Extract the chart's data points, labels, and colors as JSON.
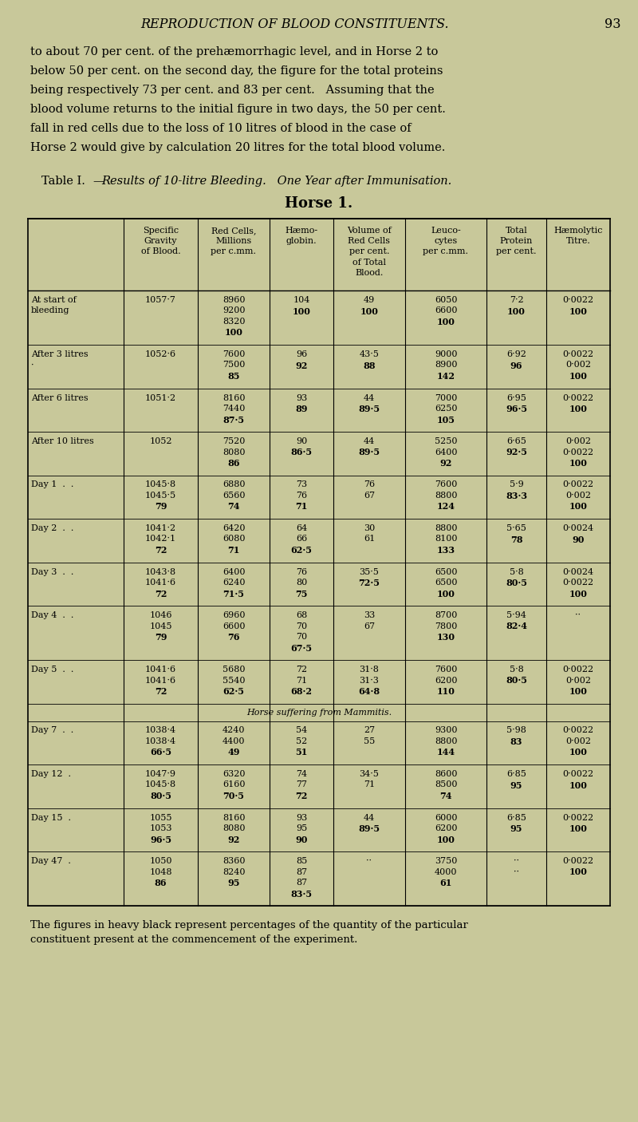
{
  "bg_color": "#c8c89a",
  "page_title": "REPRODUCTION OF BLOOD CONSTITUENTS.",
  "page_number": "93",
  "intro_text": [
    "to about 70 per cent. of the prehæmorrhagic level, and in Horse 2 to",
    "below 50 per cent. on the second day, the figure for the total proteins",
    "being respectively 73 per cent. and 83 per cent.   Assuming that the",
    "blood volume returns to the initial figure in two days, the 50 per cent.",
    "fall in red cells due to the loss of 10 litres of blood in the case of",
    "Horse 2 would give by calculation 20 litres for the total blood volume."
  ],
  "table_title_fixed": "Table I.",
  "table_title_italic": "—Results of 10-litre Bleeding.   One Year after Immunisation.",
  "table_subtitle": "Horse 1.",
  "col_headers": [
    "",
    "Specific\nGravity\nof Blood.",
    "Red Cells,\nMillions\nper c.mm.",
    "Hæmo-\nglobin.",
    "Volume of\nRed Cells\nper cent.\nof Total\nBlood.",
    "Leuco-\ncytes\nper c.mm.",
    "Total\nProtein\nper cent.",
    "Hæmolytic\nTitre."
  ],
  "footer_text": "The figures in heavy black represent percentages of the quantity of the particular\nconstituent present at the commencement of the experiment.",
  "rows": [
    {
      "label": [
        "At start of",
        "bleeding"
      ],
      "col1": [
        "1057·7"
      ],
      "col2": [
        "8960",
        "9200",
        "8320",
        "100"
      ],
      "col3": [
        "104",
        "100"
      ],
      "col4": [
        "49",
        "100"
      ],
      "col5": [
        "6050",
        "6600",
        "100"
      ],
      "col6": [
        "7·2",
        "100"
      ],
      "col7": [
        "0·0022",
        "100"
      ],
      "bold_lines": {
        "col2": [
          3
        ],
        "col3": [
          1
        ],
        "col4": [
          1
        ],
        "col5": [
          2
        ],
        "col6": [
          1
        ],
        "col7": [
          1
        ]
      }
    },
    {
      "label": [
        "After 3 litres",
        "·"
      ],
      "col1": [
        "1052·6"
      ],
      "col2": [
        "7600",
        "7500",
        "85"
      ],
      "col3": [
        "96",
        "92"
      ],
      "col4": [
        "43·5",
        "88"
      ],
      "col5": [
        "9000",
        "8900",
        "142"
      ],
      "col6": [
        "6·92",
        "96"
      ],
      "col7": [
        "0·0022",
        "0·002",
        "100"
      ],
      "bold_lines": {
        "col2": [
          2
        ],
        "col3": [
          1
        ],
        "col4": [
          1
        ],
        "col5": [
          2
        ],
        "col6": [
          1
        ],
        "col7": [
          2
        ]
      }
    },
    {
      "label": [
        "After 6 litres"
      ],
      "col1": [
        "1051·2"
      ],
      "col2": [
        "8160",
        "7440",
        "87·5"
      ],
      "col3": [
        "93",
        "89"
      ],
      "col4": [
        "44",
        "89·5"
      ],
      "col5": [
        "7000",
        "6250",
        "105"
      ],
      "col6": [
        "6·95",
        "96·5"
      ],
      "col7": [
        "0·0022",
        "100"
      ],
      "bold_lines": {
        "col2": [
          2
        ],
        "col3": [
          1
        ],
        "col4": [
          1
        ],
        "col5": [
          2
        ],
        "col6": [
          1
        ],
        "col7": [
          1
        ]
      }
    },
    {
      "label": [
        "After 10 litres"
      ],
      "col1": [
        "1052"
      ],
      "col2": [
        "7520",
        "8080",
        "86"
      ],
      "col3": [
        "90",
        "86·5"
      ],
      "col4": [
        "44",
        "89·5"
      ],
      "col5": [
        "5250",
        "6400",
        "92"
      ],
      "col6": [
        "6·65",
        "92·5"
      ],
      "col7": [
        "0·002",
        "0·0022",
        "100"
      ],
      "bold_lines": {
        "col2": [
          2
        ],
        "col3": [
          1
        ],
        "col4": [
          1
        ],
        "col5": [
          2
        ],
        "col6": [
          1
        ],
        "col7": [
          2
        ]
      }
    },
    {
      "label": [
        "Day 1  .  ."
      ],
      "col1": [
        "1045·8",
        "1045·5",
        "79"
      ],
      "col2": [
        "6880",
        "6560",
        "74"
      ],
      "col3": [
        "73",
        "76",
        "71"
      ],
      "col4": [
        "76",
        "67"
      ],
      "col5": [
        "7600",
        "8800",
        "124"
      ],
      "col6": [
        "5·9",
        "83·3"
      ],
      "col7": [
        "0·0022",
        "0·002",
        "100"
      ],
      "bold_lines": {
        "col1": [
          2
        ],
        "col2": [
          2
        ],
        "col3": [
          2
        ],
        "col5": [
          2
        ],
        "col6": [
          1
        ],
        "col7": [
          2
        ]
      }
    },
    {
      "label": [
        "Day 2  .  ."
      ],
      "col1": [
        "1041·2",
        "1042·1",
        "72"
      ],
      "col2": [
        "6420",
        "6080",
        "71"
      ],
      "col3": [
        "64",
        "66",
        "62·5"
      ],
      "col4": [
        "30",
        "61"
      ],
      "col5": [
        "8800",
        "8100",
        "133"
      ],
      "col6": [
        "5·65",
        "78"
      ],
      "col7": [
        "0·0024",
        "90"
      ],
      "bold_lines": {
        "col1": [
          2
        ],
        "col2": [
          2
        ],
        "col3": [
          2
        ],
        "col5": [
          2
        ],
        "col6": [
          1
        ],
        "col7": [
          1
        ]
      }
    },
    {
      "label": [
        "Day 3  .  ."
      ],
      "col1": [
        "1043·8",
        "1041·6",
        "72"
      ],
      "col2": [
        "6400",
        "6240",
        "71·5"
      ],
      "col3": [
        "76",
        "80",
        "75"
      ],
      "col4": [
        "35·5",
        "72·5"
      ],
      "col5": [
        "6500",
        "6500",
        "100"
      ],
      "col6": [
        "5·8",
        "80·5"
      ],
      "col7": [
        "0·0024",
        "0·0022",
        "100"
      ],
      "bold_lines": {
        "col1": [
          2
        ],
        "col2": [
          2
        ],
        "col3": [
          2
        ],
        "col4": [
          1
        ],
        "col5": [
          2
        ],
        "col6": [
          1
        ],
        "col7": [
          2
        ]
      }
    },
    {
      "label": [
        "Day 4  .  ."
      ],
      "col1": [
        "1046",
        "1045",
        "79"
      ],
      "col2": [
        "6960",
        "6600",
        "76"
      ],
      "col3": [
        "68",
        "70",
        "70",
        "67·5"
      ],
      "col4": [
        "33",
        "67"
      ],
      "col5": [
        "8700",
        "7800",
        "130"
      ],
      "col6": [
        "5·94",
        "82·4"
      ],
      "col7": [
        "··"
      ],
      "bold_lines": {
        "col1": [
          2
        ],
        "col2": [
          2
        ],
        "col3": [
          3
        ],
        "col5": [
          2
        ],
        "col6": [
          1
        ]
      }
    },
    {
      "label": [
        "Day 5  .  ."
      ],
      "col1": [
        "1041·6",
        "1041·6",
        "72"
      ],
      "col2": [
        "5680",
        "5540",
        "62·5"
      ],
      "col3": [
        "72",
        "71",
        "68·2"
      ],
      "col4": [
        "31·8",
        "31·3",
        "64·8"
      ],
      "col5": [
        "7600",
        "6200",
        "110"
      ],
      "col6": [
        "5·8",
        "80·5"
      ],
      "col7": [
        "0·0022",
        "0·002",
        "100"
      ],
      "bold_lines": {
        "col1": [
          2
        ],
        "col2": [
          2
        ],
        "col3": [
          2
        ],
        "col4": [
          2
        ],
        "col5": [
          2
        ],
        "col6": [
          1
        ],
        "col7": [
          2
        ]
      }
    },
    {
      "separator": true,
      "label": "Horse suffering from Mammitis."
    },
    {
      "label": [
        "Day 7  .  ."
      ],
      "col1": [
        "1038·4",
        "1038·4",
        "66·5"
      ],
      "col2": [
        "4240",
        "4400",
        "49"
      ],
      "col3": [
        "54",
        "52",
        "51"
      ],
      "col4": [
        "27",
        "55"
      ],
      "col5": [
        "9300",
        "8800",
        "144"
      ],
      "col6": [
        "5·98",
        "83"
      ],
      "col7": [
        "0·0022",
        "0·002",
        "100"
      ],
      "bold_lines": {
        "col1": [
          2
        ],
        "col2": [
          2
        ],
        "col3": [
          2
        ],
        "col5": [
          2
        ],
        "col6": [
          1
        ],
        "col7": [
          2
        ]
      }
    },
    {
      "label": [
        "Day 12  ."
      ],
      "col1": [
        "1047·9",
        "1045·8",
        "80·5"
      ],
      "col2": [
        "6320",
        "6160",
        "70·5"
      ],
      "col3": [
        "74",
        "77",
        "72"
      ],
      "col4": [
        "34·5",
        "71"
      ],
      "col5": [
        "8600",
        "8500",
        "74"
      ],
      "col6": [
        "6·85",
        "95"
      ],
      "col7": [
        "0·0022",
        "100"
      ],
      "bold_lines": {
        "col1": [
          2
        ],
        "col2": [
          2
        ],
        "col3": [
          2
        ],
        "col5": [
          2
        ],
        "col6": [
          1
        ],
        "col7": [
          1
        ]
      }
    },
    {
      "label": [
        "Day 15  ."
      ],
      "col1": [
        "1055",
        "1053",
        "96·5"
      ],
      "col2": [
        "8160",
        "8080",
        "92"
      ],
      "col3": [
        "93",
        "95",
        "90"
      ],
      "col4": [
        "44",
        "89·5"
      ],
      "col5": [
        "6000",
        "6200",
        "100"
      ],
      "col6": [
        "6·85",
        "95"
      ],
      "col7": [
        "0·0022",
        "100"
      ],
      "bold_lines": {
        "col1": [
          2
        ],
        "col2": [
          2
        ],
        "col3": [
          2
        ],
        "col4": [
          1
        ],
        "col5": [
          2
        ],
        "col6": [
          1
        ],
        "col7": [
          1
        ]
      }
    },
    {
      "label": [
        "Day 47  ."
      ],
      "col1": [
        "1050",
        "1048",
        "86"
      ],
      "col2": [
        "8360",
        "8240",
        "95"
      ],
      "col3": [
        "85",
        "87",
        "87",
        "83·5"
      ],
      "col4": [
        "··"
      ],
      "col5": [
        "3750",
        "4000",
        "61"
      ],
      "col6": [
        "··",
        "··"
      ],
      "col7": [
        "0·0022",
        "100"
      ],
      "bold_lines": {
        "col1": [
          2
        ],
        "col2": [
          2
        ],
        "col3": [
          3
        ],
        "col5": [
          2
        ],
        "col7": [
          1
        ]
      }
    }
  ]
}
